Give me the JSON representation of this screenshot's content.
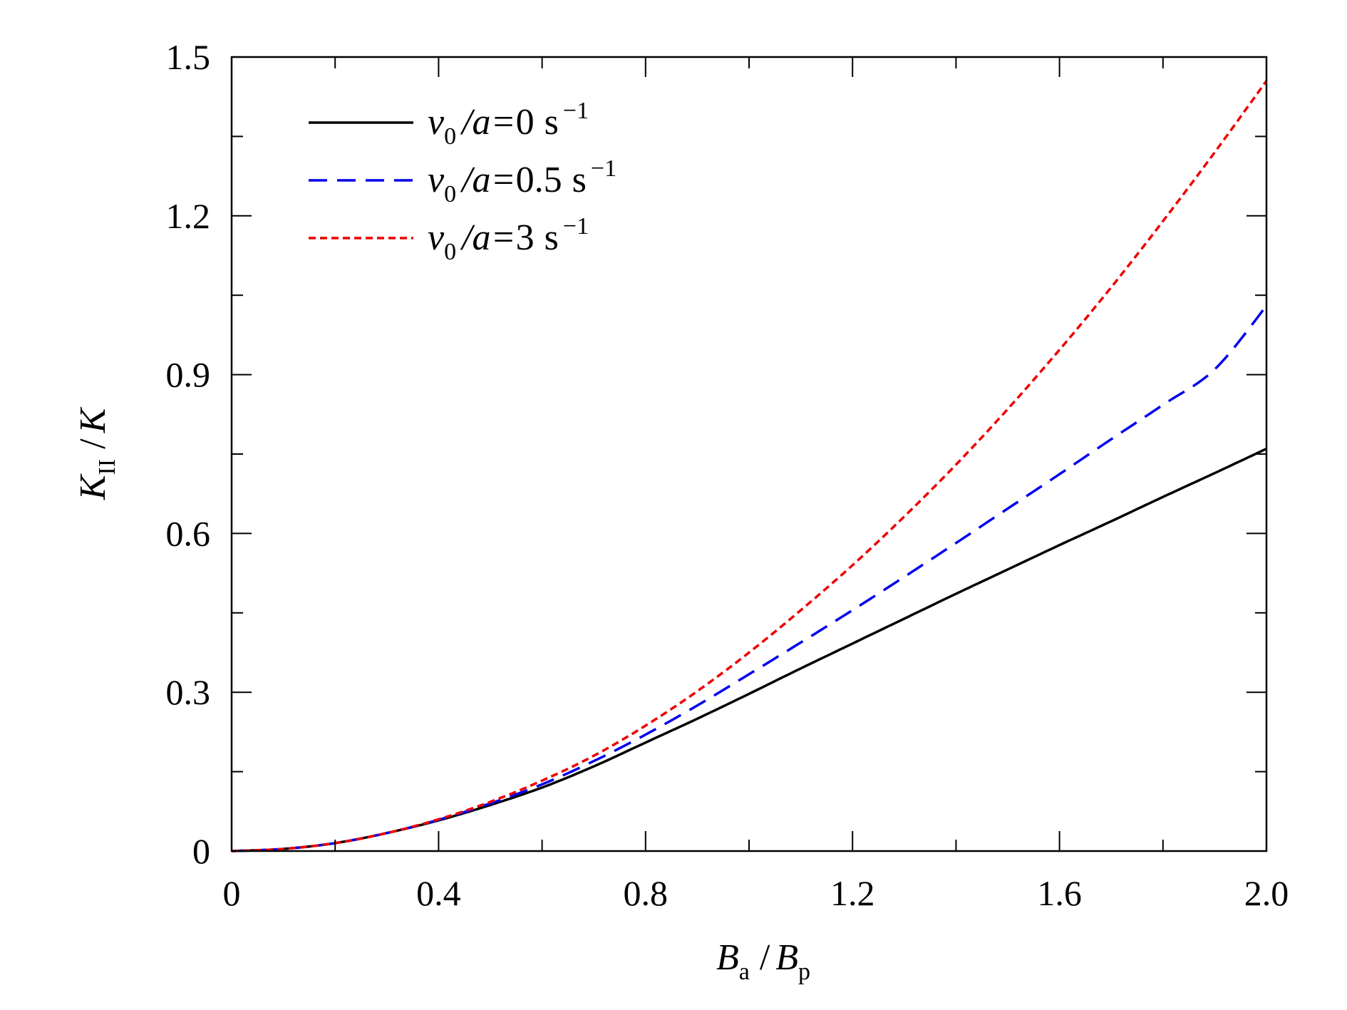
{
  "chart_data": {
    "type": "line",
    "xlabel": {
      "main": "B",
      "sub1": "a",
      "sep": "/",
      "main2": "B",
      "sub2": "p"
    },
    "ylabel": {
      "main": "K",
      "sub1": "II",
      "sep": "/",
      "main2": "K"
    },
    "xlim": [
      0,
      2.0
    ],
    "ylim": [
      0,
      1.5
    ],
    "x_ticks": [
      0,
      0.4,
      0.8,
      1.2,
      1.6,
      2.0
    ],
    "x_tick_labels": [
      "0",
      "0.4",
      "0.8",
      "1.2",
      "1.6",
      "2.0"
    ],
    "y_ticks": [
      0,
      0.3,
      0.6,
      0.9,
      1.2,
      1.5
    ],
    "y_tick_labels": [
      "0",
      "0.3",
      "0.6",
      "0.9",
      "1.2",
      "1.5"
    ],
    "grid": false,
    "legend_position": "top-left",
    "series": [
      {
        "name": "v0/a=0 s−1",
        "legend": {
          "v": "v",
          "vsub": "0",
          "rest": "/a=",
          "value": "0",
          "unit": "s",
          "exp": "−1"
        },
        "color": "#000000",
        "dash": "solid",
        "x": [
          0,
          0.1,
          0.2,
          0.3,
          0.4,
          0.5,
          0.6,
          0.7,
          0.8,
          0.9,
          1.0,
          1.1,
          1.2,
          1.3,
          1.4,
          1.5,
          1.6,
          1.7,
          1.8,
          1.9,
          2.0
        ],
        "y": [
          0,
          0.004,
          0.015,
          0.034,
          0.058,
          0.087,
          0.12,
          0.16,
          0.205,
          0.25,
          0.297,
          0.345,
          0.392,
          0.439,
          0.486,
          0.532,
          0.578,
          0.623,
          0.669,
          0.714,
          0.76
        ]
      },
      {
        "name": "v0/a=0.5 s−1",
        "legend": {
          "v": "v",
          "vsub": "0",
          "rest": "/a=",
          "value": "0.5",
          "unit": "s",
          "exp": "−1"
        },
        "color": "#0000ee",
        "dash": "dashed",
        "x": [
          0,
          0.1,
          0.2,
          0.3,
          0.4,
          0.5,
          0.6,
          0.7,
          0.8,
          0.9,
          1.0,
          1.1,
          1.2,
          1.3,
          1.4,
          1.5,
          1.6,
          1.7,
          1.8,
          1.9,
          2.0
        ],
        "y": [
          0,
          0.004,
          0.015,
          0.034,
          0.059,
          0.09,
          0.126,
          0.17,
          0.22,
          0.275,
          0.334,
          0.394,
          0.455,
          0.518,
          0.582,
          0.647,
          0.712,
          0.778,
          0.843,
          0.91,
          1.03
        ]
      },
      {
        "name": "v0/a=3 s−1",
        "legend": {
          "v": "v",
          "vsub": "0",
          "rest": "/a=",
          "value": "3",
          "unit": "s",
          "exp": "−1"
        },
        "color": "#ee0000",
        "dash": "dotted",
        "x": [
          0,
          0.1,
          0.2,
          0.3,
          0.4,
          0.5,
          0.6,
          0.7,
          0.8,
          0.9,
          1.0,
          1.1,
          1.2,
          1.3,
          1.4,
          1.5,
          1.6,
          1.7,
          1.8,
          1.9,
          2.0
        ],
        "y": [
          0,
          0.004,
          0.015,
          0.034,
          0.06,
          0.093,
          0.133,
          0.18,
          0.237,
          0.302,
          0.375,
          0.455,
          0.54,
          0.632,
          0.73,
          0.835,
          0.947,
          1.065,
          1.19,
          1.32,
          1.455
        ]
      }
    ]
  }
}
